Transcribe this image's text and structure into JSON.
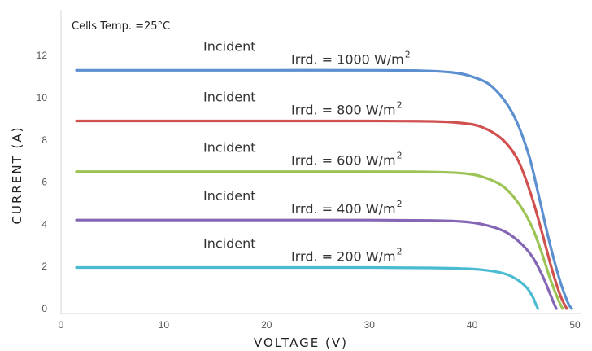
{
  "chart_data": {
    "type": "line",
    "title": "",
    "note": "Cells Temp. =25°C",
    "xlabel": "VOLTAGE (V)",
    "ylabel": "CURRENT (A)",
    "xlim": [
      0,
      50
    ],
    "ylim": [
      0,
      14
    ],
    "x_ticks": [
      0,
      10,
      20,
      30,
      40,
      50
    ],
    "y_ticks": [
      0,
      2,
      4,
      6,
      8,
      10,
      12
    ],
    "grid": false,
    "series": [
      {
        "incident": "Incident",
        "label": "Irrd. = 1000 W/m",
        "sup": "2",
        "color": "#5b8fcf",
        "points": [
          [
            1.5,
            11.3
          ],
          [
            10,
            11.3
          ],
          [
            20,
            11.3
          ],
          [
            30,
            11.3
          ],
          [
            35,
            11.28
          ],
          [
            38,
            11.2
          ],
          [
            40,
            11.0
          ],
          [
            42,
            10.5
          ],
          [
            44,
            9.2
          ],
          [
            45.5,
            7.3
          ],
          [
            46.5,
            5.3
          ],
          [
            47.5,
            3.2
          ],
          [
            48.5,
            1.4
          ],
          [
            49.3,
            0.3
          ],
          [
            49.7,
            0
          ]
        ]
      },
      {
        "incident": "Incident",
        "label": "Irrd. = 800  W/m",
        "sup": "2",
        "color": "#d05050",
        "points": [
          [
            1.5,
            8.9
          ],
          [
            10,
            8.9
          ],
          [
            20,
            8.9
          ],
          [
            30,
            8.9
          ],
          [
            36,
            8.88
          ],
          [
            39,
            8.8
          ],
          [
            41,
            8.6
          ],
          [
            43,
            8.0
          ],
          [
            44.5,
            7.0
          ],
          [
            45.8,
            5.3
          ],
          [
            46.8,
            3.6
          ],
          [
            47.8,
            1.8
          ],
          [
            48.6,
            0.6
          ],
          [
            49.2,
            0
          ]
        ]
      },
      {
        "incident": "Incident",
        "label": "Irrd. = 600  W/m",
        "sup": "2",
        "color": "#9cc455",
        "points": [
          [
            1.5,
            6.5
          ],
          [
            10,
            6.5
          ],
          [
            20,
            6.5
          ],
          [
            30,
            6.5
          ],
          [
            36,
            6.48
          ],
          [
            39,
            6.42
          ],
          [
            41,
            6.25
          ],
          [
            43,
            5.8
          ],
          [
            44.5,
            5.0
          ],
          [
            45.8,
            3.9
          ],
          [
            46.8,
            2.6
          ],
          [
            47.6,
            1.4
          ],
          [
            48.4,
            0.4
          ],
          [
            48.8,
            0
          ]
        ]
      },
      {
        "incident": "Incident",
        "label": "Irrd. = 400  W/m",
        "sup": "2",
        "color": "#8466b4",
        "points": [
          [
            1.5,
            4.2
          ],
          [
            10,
            4.2
          ],
          [
            20,
            4.2
          ],
          [
            30,
            4.2
          ],
          [
            36,
            4.18
          ],
          [
            39,
            4.13
          ],
          [
            41,
            4.0
          ],
          [
            43,
            3.7
          ],
          [
            44.5,
            3.2
          ],
          [
            45.8,
            2.5
          ],
          [
            46.8,
            1.6
          ],
          [
            47.5,
            0.8
          ],
          [
            48.0,
            0.2
          ],
          [
            48.2,
            0
          ]
        ]
      },
      {
        "incident": "Incident",
        "label": "Irrd. = 200  W/m",
        "sup": "2",
        "color": "#4bbbd2",
        "points": [
          [
            1.5,
            1.95
          ],
          [
            10,
            1.95
          ],
          [
            20,
            1.95
          ],
          [
            30,
            1.95
          ],
          [
            36,
            1.93
          ],
          [
            39,
            1.9
          ],
          [
            41,
            1.84
          ],
          [
            43,
            1.68
          ],
          [
            44.3,
            1.4
          ],
          [
            45.3,
            1.0
          ],
          [
            45.9,
            0.55
          ],
          [
            46.2,
            0.2
          ],
          [
            46.4,
            0
          ]
        ]
      }
    ]
  }
}
